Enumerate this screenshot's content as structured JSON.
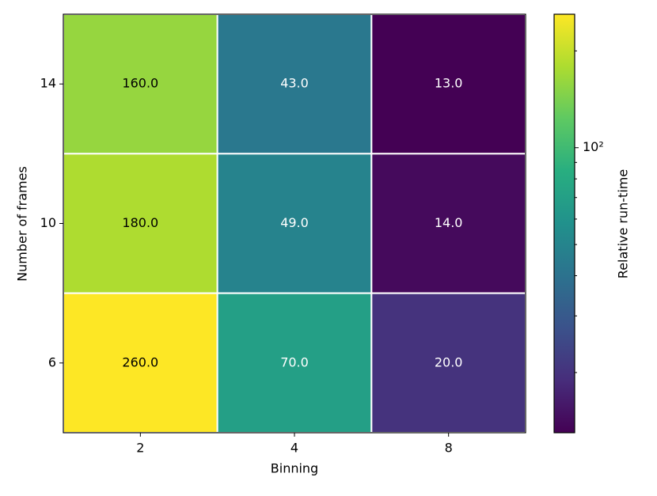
{
  "chart_data": {
    "type": "heatmap",
    "x_label": "Binning",
    "y_label": "Number of frames",
    "x_categories": [
      "2",
      "4",
      "8"
    ],
    "y_categories": [
      "14",
      "10",
      "6"
    ],
    "values": [
      [
        160,
        43,
        13
      ],
      [
        180,
        49,
        14
      ],
      [
        260,
        70,
        20
      ]
    ],
    "value_labels": [
      [
        "160.0",
        "43.0",
        "13.0"
      ],
      [
        "180.0",
        "49.0",
        "14.0"
      ],
      [
        "260.0",
        "70.0",
        "20.0"
      ]
    ],
    "colormap": "viridis",
    "colorbar": {
      "label": "Relative run-time",
      "scale": "log",
      "lim": [
        13,
        260
      ],
      "ticks": [
        {
          "value": 100,
          "label": "10²"
        }
      ],
      "minor_ticks": [
        20,
        30,
        40,
        50,
        60,
        70,
        80,
        90,
        200
      ]
    }
  }
}
